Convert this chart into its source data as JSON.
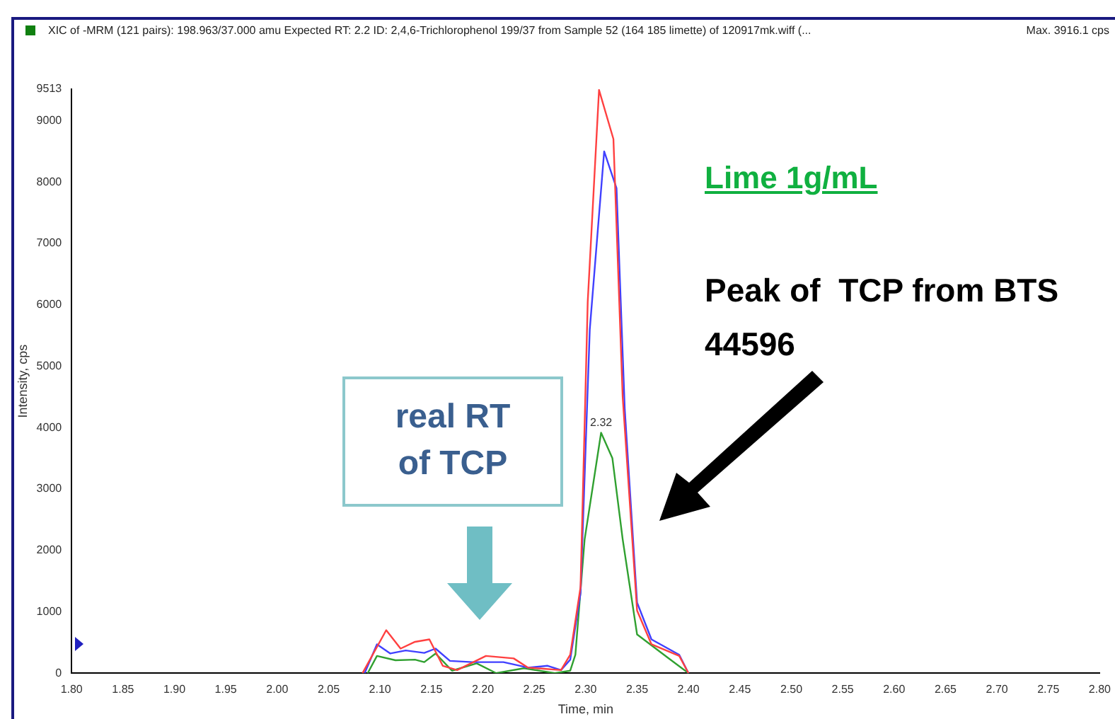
{
  "chart_data": {
    "type": "line",
    "title": "XIC of -MRM (121 pairs): 198.963/37.000 amu Expected RT: 2.2 ID: 2,4,6-Trichlorophenol 199/37 from Sample 52 (164 185 limette) of 120917mk.wiff (...",
    "xlabel": "Time, min",
    "ylabel": "Intensity, cps",
    "annotations": [
      "Max. 3916.1 cps",
      "Lime 1g/mL",
      "Peak of  TCP from BTS 44596",
      "real RT of TCP",
      {
        "text": "2.32",
        "x": 2.315,
        "y": 3916
      }
    ],
    "xlim": [
      1.8,
      2.8
    ],
    "ylim": [
      0,
      9513
    ],
    "xticks": [
      {
        "value": 1.8,
        "label": "1.80"
      },
      1.85,
      {
        "value": 1.9,
        "label": "1.90"
      },
      1.95,
      {
        "value": 2.0,
        "label": "2.00"
      },
      2.05,
      {
        "value": 2.1,
        "label": "2.10"
      },
      2.15,
      {
        "value": 2.2,
        "label": "2.20"
      },
      2.25,
      {
        "value": 2.3,
        "label": "2.30"
      },
      2.35,
      {
        "value": 2.4,
        "label": "2.40"
      },
      2.45,
      {
        "value": 2.5,
        "label": "2.50"
      },
      2.55,
      {
        "value": 2.6,
        "label": "2.60"
      },
      2.65,
      {
        "value": 2.7,
        "label": "2.70"
      },
      2.75,
      {
        "value": 2.8,
        "label": "2.80"
      }
    ],
    "yticks": [
      0,
      1000,
      2000,
      3000,
      4000,
      5000,
      6000,
      7000,
      8000,
      9000,
      9513
    ],
    "grid": false,
    "legend": false,
    "marker": "none",
    "line_style": "solid",
    "series": [
      {
        "color": "#ff4040",
        "x": [
          2.083,
          2.106,
          2.12,
          2.134,
          2.148,
          2.161,
          2.175,
          2.203,
          2.23,
          2.244,
          2.276,
          2.285,
          2.295,
          2.302,
          2.313,
          2.327,
          2.336,
          2.35,
          2.364,
          2.391,
          2.4
        ],
        "values": [
          0,
          700,
          400,
          510,
          550,
          120,
          50,
          280,
          240,
          90,
          50,
          300,
          1400,
          6050,
          9500,
          8700,
          4500,
          1020,
          470,
          280,
          0
        ]
      },
      {
        "color": "#4040ff",
        "x": [
          2.085,
          2.097,
          2.11,
          2.125,
          2.143,
          2.154,
          2.168,
          2.19,
          2.22,
          2.244,
          2.263,
          2.276,
          2.285,
          2.295,
          2.304,
          2.318,
          2.33,
          2.338,
          2.35,
          2.364,
          2.391,
          2.4
        ],
        "values": [
          0,
          470,
          320,
          370,
          330,
          400,
          200,
          180,
          180,
          90,
          120,
          50,
          220,
          1300,
          5600,
          8500,
          7900,
          4300,
          1150,
          550,
          300,
          0
        ]
      },
      {
        "color": "#30a030",
        "x": [
          2.088,
          2.097,
          2.115,
          2.134,
          2.143,
          2.154,
          2.17,
          2.194,
          2.213,
          2.24,
          2.27,
          2.285,
          2.29,
          2.299,
          2.315,
          2.326,
          2.336,
          2.35,
          2.38,
          2.4
        ],
        "values": [
          0,
          280,
          210,
          220,
          180,
          320,
          40,
          160,
          0,
          80,
          0,
          40,
          300,
          2180,
          3916,
          3500,
          2180,
          630,
          250,
          0
        ]
      }
    ]
  }
}
